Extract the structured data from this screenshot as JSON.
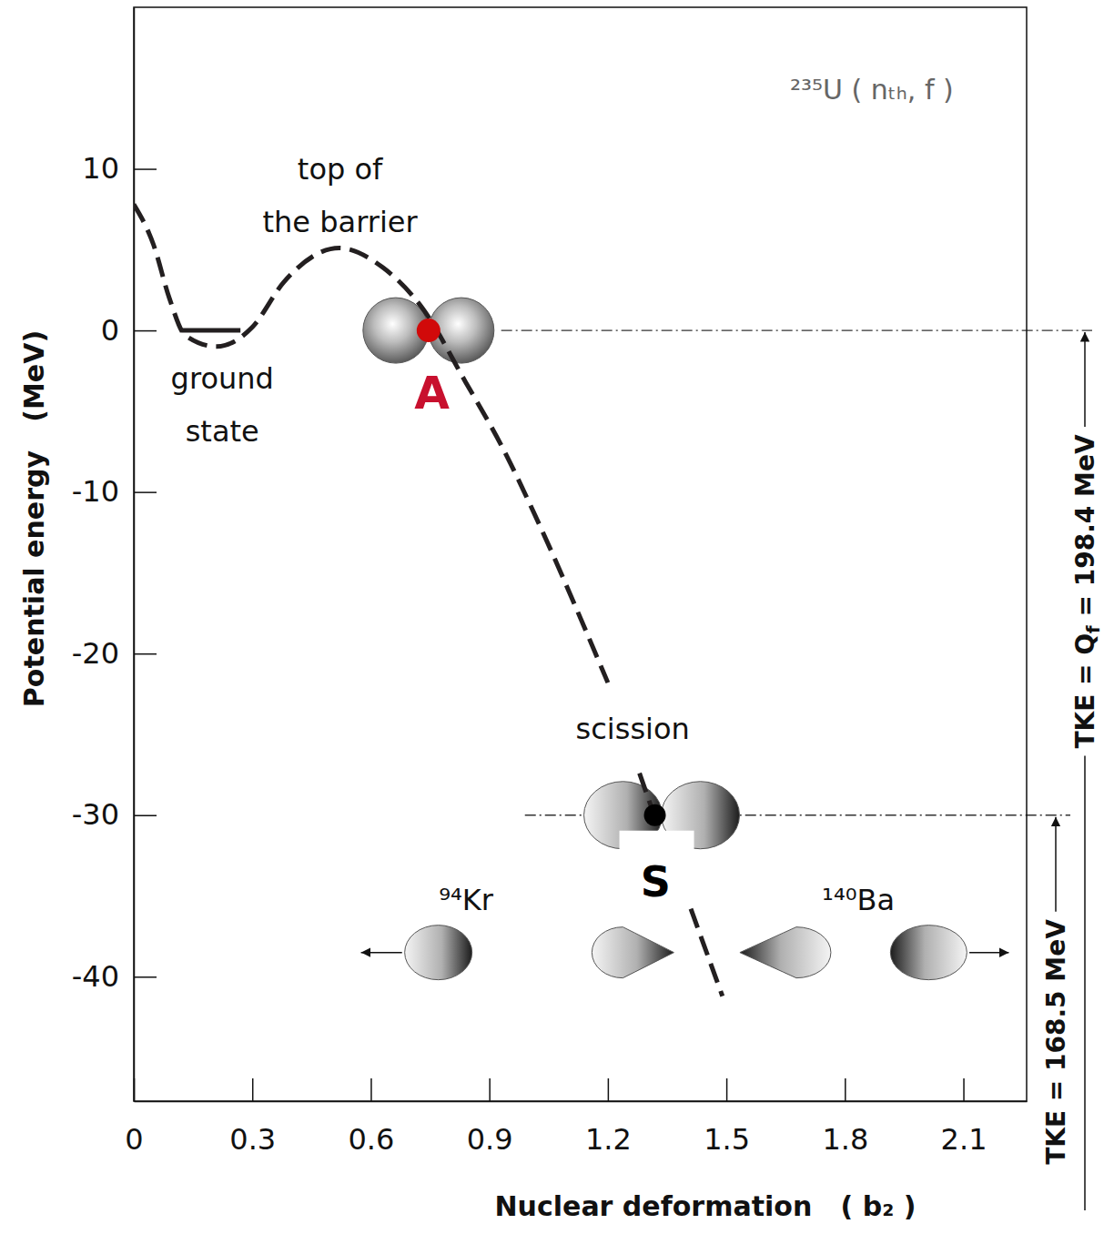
{
  "chart_data": {
    "type": "line",
    "title": "²³⁵U ( nₜₕ, f )",
    "x_label": "Nuclear deformation   ( b₂ )",
    "y_label": "Potential energy   (MeV)",
    "xlim": [
      0,
      2.26
    ],
    "xticks": [
      0,
      0.3,
      0.6,
      0.9,
      1.2,
      1.5,
      1.8,
      2.1
    ],
    "ylim": [
      -47.7,
      20
    ],
    "yticks": [
      -40,
      -30,
      -20,
      -10,
      0,
      10
    ],
    "grid": false,
    "series": [
      {
        "x": [
          0,
          0.05,
          0.09,
          0.13,
          0.21,
          0.3,
          0.38,
          0.52,
          0.63,
          0.73,
          0.84,
          0.93,
          1.03,
          1.12,
          1.2,
          null,
          1.28,
          1.32,
          null,
          1.41,
          1.49
        ],
        "values": [
          7.8,
          5.3,
          2.0,
          -0.3,
          -1.0,
          0.2,
          3.0,
          5.1,
          3.9,
          1.4,
          -3.2,
          -7.1,
          -12.2,
          -17.2,
          -21.8,
          null,
          -27.4,
          -30.2,
          null,
          -35.8,
          -41.2
        ],
        "color": "#231f20",
        "line_style": "dashed"
      },
      {
        "x": [
          0.12,
          0.27
        ],
        "values": [
          0,
          0
        ],
        "color": "#231f20",
        "line_style": "solid"
      }
    ],
    "hlines": [
      {
        "y": 0,
        "line_style": "dashdot"
      },
      {
        "y": -30,
        "line_style": "dashdot"
      }
    ],
    "annotations": [
      {
        "lines": [
          "top of",
          "the barrier"
        ]
      },
      {
        "lines": [
          "ground",
          "state"
        ]
      },
      {
        "lines": [
          "scission"
        ]
      },
      {
        "lines": [
          "A"
        ]
      },
      {
        "lines": [
          "S"
        ]
      },
      {
        "lines": [
          "⁹⁴Kr"
        ]
      },
      {
        "lines": [
          "¹⁴⁰Ba"
        ]
      }
    ],
    "right_labels": [
      {
        "parts": [
          "TKE = Q",
          "f",
          " = 198.4 MeV"
        ]
      },
      {
        "parts": [
          "TKE = 168.5 MeV"
        ]
      }
    ]
  }
}
